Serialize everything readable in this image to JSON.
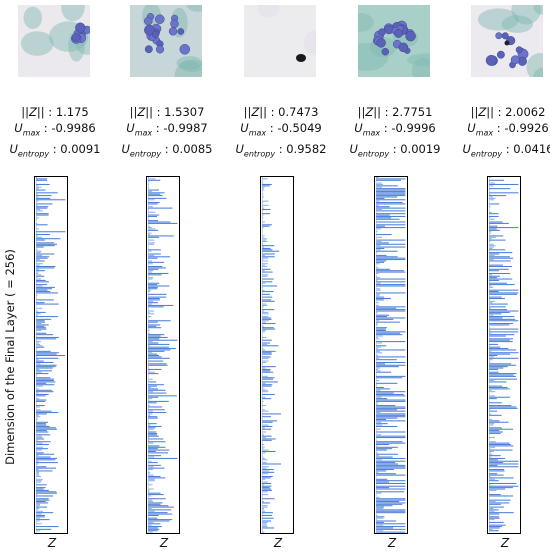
{
  "y_axis_label": "Dimension of the Final Layer ( = 256)",
  "colors": {
    "bar": "#4a7fd9",
    "bar_light": "#8ab0ee",
    "frame": "#000000"
  },
  "panels": [
    {
      "thumb_scene": "edge-cluster",
      "stats": {
        "z_norm": "1.175",
        "u_max": "-0.9986",
        "u_entropy": "0.0091"
      },
      "xlabel": "Z"
    },
    {
      "thumb_scene": "dense-cluster",
      "stats": {
        "z_norm": "1.5307",
        "u_max": "-0.9987",
        "u_entropy": "0.0085"
      },
      "xlabel": "Z"
    },
    {
      "thumb_scene": "debris",
      "stats": {
        "z_norm": "0.7473",
        "u_max": "-0.5049",
        "u_entropy": "0.9582"
      },
      "xlabel": "Z"
    },
    {
      "thumb_scene": "teal-cluster",
      "stats": {
        "z_norm": "2.7751",
        "u_max": "-0.9996",
        "u_entropy": "0.0019"
      },
      "xlabel": "Z"
    },
    {
      "thumb_scene": "scattered-cells",
      "stats": {
        "z_norm": "2.0062",
        "u_max": "-0.9926",
        "u_entropy": "0.0416"
      },
      "xlabel": "Z"
    }
  ],
  "chart_data": [
    {
      "type": "bar",
      "orientation": "horizontal",
      "xlabel": "Z",
      "ylabel": "Dimension of the Final Layer ( = 256)",
      "n_dims": 256,
      "seed": 11,
      "scale": 0.32
    },
    {
      "type": "bar",
      "orientation": "horizontal",
      "xlabel": "Z",
      "ylabel": "Dimension of the Final Layer ( = 256)",
      "n_dims": 256,
      "seed": 23,
      "scale": 0.36
    },
    {
      "type": "bar",
      "orientation": "horizontal",
      "xlabel": "Z",
      "ylabel": "Dimension of the Final Layer ( = 256)",
      "n_dims": 256,
      "seed": 37,
      "scale": 0.2
    },
    {
      "type": "bar",
      "orientation": "horizontal",
      "xlabel": "Z",
      "ylabel": "Dimension of the Final Layer ( = 256)",
      "n_dims": 256,
      "seed": 41,
      "scale": 0.74
    },
    {
      "type": "bar",
      "orientation": "horizontal",
      "xlabel": "Z",
      "ylabel": "Dimension of the Final Layer ( = 256)",
      "n_dims": 256,
      "seed": 53,
      "scale": 0.45
    }
  ]
}
